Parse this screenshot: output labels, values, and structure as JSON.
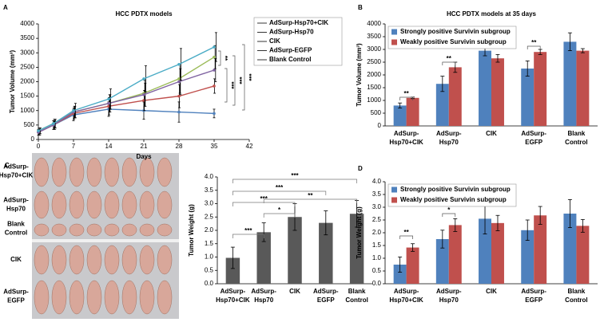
{
  "chart_data": [
    {
      "type": "line",
      "panel": "A",
      "title": "HCC PDTX models",
      "xlabel": "Days",
      "ylabel": "Tumor Volume (mm³)",
      "x": [
        0,
        3,
        7,
        14,
        21,
        28,
        35
      ],
      "xlim": [
        0,
        42
      ],
      "xticks": [
        0,
        7,
        14,
        21,
        28,
        35,
        42
      ],
      "ylim": [
        0,
        4000
      ],
      "yticks": [
        0,
        500,
        1000,
        1500,
        2000,
        2500,
        3000,
        3500,
        4000
      ],
      "series": [
        {
          "name": "AdSurp-Hsp70+CIK",
          "color": "#4f81bd",
          "values": [
            250,
            500,
            850,
            1050,
            1000,
            950,
            900
          ],
          "errors": [
            100,
            150,
            200,
            250,
            300,
            350,
            150
          ]
        },
        {
          "name": "AdSurp-Hsp70",
          "color": "#c0504d",
          "values": [
            250,
            500,
            900,
            1150,
            1350,
            1500,
            1850
          ],
          "errors": [
            100,
            150,
            200,
            300,
            350,
            400,
            250
          ]
        },
        {
          "name": "CIK",
          "color": "#9bbb59",
          "values": [
            300,
            550,
            950,
            1250,
            1600,
            2100,
            2850
          ],
          "errors": [
            100,
            150,
            200,
            300,
            450,
            500,
            400
          ]
        },
        {
          "name": "AdSurp-EGFP",
          "color": "#8064a2",
          "values": [
            250,
            500,
            950,
            1250,
            1550,
            2000,
            2400
          ],
          "errors": [
            100,
            150,
            200,
            300,
            400,
            450,
            400
          ]
        },
        {
          "name": "Blank Control",
          "color": "#4bacc6",
          "values": [
            300,
            550,
            1000,
            1400,
            2100,
            2600,
            3200
          ],
          "errors": [
            100,
            150,
            250,
            350,
            450,
            550,
            500
          ]
        }
      ],
      "annotations": [
        "**",
        "***",
        "***",
        "***"
      ]
    },
    {
      "type": "bar",
      "panel": "B",
      "title": "HCC PDTX models at 35 days",
      "ylabel": "Tumor Volume (mm³)",
      "categories": [
        [
          "AdSurp-",
          "Hsp70+CIK"
        ],
        [
          "AdSurp-",
          "Hsp70"
        ],
        [
          "CIK"
        ],
        [
          "AdSurp-",
          "EGFP"
        ],
        [
          "Blank",
          "Control"
        ]
      ],
      "ylim": [
        0,
        4000
      ],
      "yticks": [
        0,
        500,
        1000,
        1500,
        2000,
        2500,
        3000,
        3500,
        4000
      ],
      "series": [
        {
          "name": "Strongly positive Survivin subgroup",
          "color": "#4f81bd",
          "values": [
            800,
            1650,
            2950,
            2250,
            3300
          ],
          "errors": [
            100,
            300,
            200,
            300,
            350
          ]
        },
        {
          "name": "Weakly positive Survivin subgroup",
          "color": "#c0504d",
          "values": [
            1100,
            2300,
            2650,
            2900,
            2950
          ],
          "errors": [
            30,
            200,
            150,
            100,
            80
          ]
        }
      ],
      "annotations": [
        "**",
        "**",
        "**"
      ]
    },
    {
      "type": "bar",
      "ylabel": "Tumor Weight (g)",
      "categories": [
        [
          "AdSurp-",
          "Hsp70+CIK"
        ],
        [
          "AdSurp-",
          "Hsp70"
        ],
        [
          "CIK"
        ],
        [
          "AdSurp-",
          "EGFP"
        ],
        [
          "Blank",
          "Control"
        ]
      ],
      "ylim": [
        0,
        4
      ],
      "yticks": [
        {
          "value": 0,
          "label": "0.0"
        },
        0.5,
        {
          "value": 1,
          "label": "1.0"
        },
        1.5,
        {
          "value": 2,
          "label": "2.0"
        },
        2.5,
        {
          "value": 3,
          "label": "3.0"
        },
        3.5,
        {
          "value": 4,
          "label": "4.0"
        }
      ],
      "series": [
        {
          "color": "#595959",
          "values": [
            0.97,
            1.93,
            2.5,
            2.28,
            2.62
          ],
          "errors": [
            0.4,
            0.35,
            0.5,
            0.45,
            0.5
          ]
        }
      ],
      "annotations": [
        "***",
        "***",
        "***",
        "**",
        "*",
        "***"
      ]
    },
    {
      "type": "bar",
      "panel": "D",
      "ylabel": "Tumor Weight (g)",
      "categories": [
        [
          "AdSurp-",
          "Hsp70+CIK"
        ],
        [
          "AdSurp-",
          "Hsp70"
        ],
        [
          "CIK"
        ],
        [
          "AdSurp-",
          "EGFP"
        ],
        [
          "Blank",
          "Control"
        ]
      ],
      "ylim": [
        0,
        4
      ],
      "yticks": [
        {
          "value": 0,
          "label": "0.0"
        },
        0.5,
        {
          "value": 1,
          "label": "1.0"
        },
        1.5,
        {
          "value": 2,
          "label": "2.0"
        },
        2.5,
        {
          "value": 3,
          "label": "3.0"
        },
        3.5,
        {
          "value": 4,
          "label": "4.0"
        }
      ],
      "series": [
        {
          "name": "Strongly positive Survivin subgroup",
          "color": "#4f81bd",
          "values": [
            0.75,
            1.75,
            2.55,
            2.1,
            2.75
          ],
          "errors": [
            0.3,
            0.35,
            0.6,
            0.4,
            0.55
          ]
        },
        {
          "name": "Weakly positive Survivin subgroup",
          "color": "#c0504d",
          "values": [
            1.42,
            2.3,
            2.38,
            2.68,
            2.27
          ],
          "errors": [
            0.15,
            0.25,
            0.3,
            0.35,
            0.25
          ]
        }
      ],
      "annotations": [
        "**",
        "*"
      ]
    }
  ],
  "photo": {
    "panel": "C",
    "labels": [
      [
        "AdSurp-",
        "Hsp70+CIK"
      ],
      [
        "AdSurp-",
        "Hsp70"
      ],
      [
        "Blank",
        "Control"
      ],
      [
        "CIK"
      ],
      [
        "AdSurp-",
        "EGFP"
      ]
    ]
  }
}
